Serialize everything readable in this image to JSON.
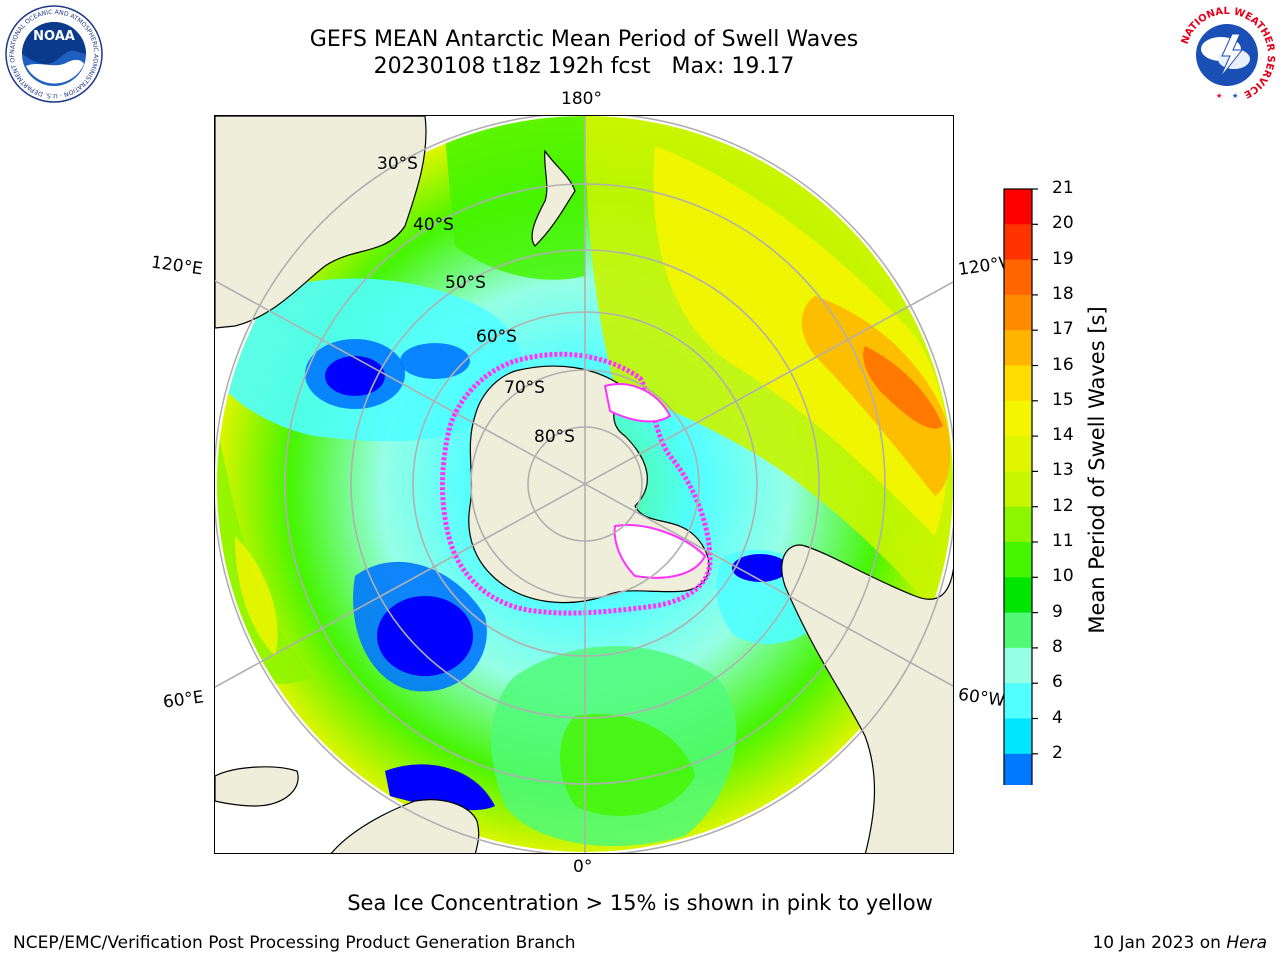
{
  "header": {
    "title_line1": "GEFS MEAN Antarctic Mean Period of Swell Waves",
    "title_line2": "20230108 t18z 192h fcst   Max: 19.17"
  },
  "logos": {
    "noaa_text": "NOAA",
    "noaa_ring_text": "NATIONAL OCEANIC AND ATMOSPHERIC ADMINISTRATION · U.S. DEPARTMENT OF COMMERCE",
    "nws_ring_text": "NATIONAL WEATHER SERVICE"
  },
  "map": {
    "projection": "south-polar-stereographic",
    "longitude_labels": {
      "top": "180°",
      "bottom": "0°",
      "upper_left": "120°E",
      "upper_right": "120°W",
      "lower_left": "60°E",
      "lower_right": "60°W"
    },
    "latitude_labels": [
      "30°S",
      "40°S",
      "50°S",
      "60°S",
      "70°S",
      "80°S"
    ],
    "colors": {
      "land": "#efeedb",
      "grid": "#b0b0b0",
      "ice_edge": "#ff33ff"
    }
  },
  "colorbar": {
    "label": "Mean Period of Swell Waves [s]",
    "ticks": [
      "21",
      "20",
      "19",
      "18",
      "17",
      "16",
      "15",
      "14",
      "13",
      "12",
      "11",
      "10",
      "9",
      "8",
      "6",
      "4",
      "2"
    ],
    "colors": [
      "#ff0000",
      "#ff3300",
      "#ff6600",
      "#ff8c00",
      "#ffb400",
      "#ffdd00",
      "#f5f500",
      "#e1f500",
      "#c8f500",
      "#8cf500",
      "#46f500",
      "#00e600",
      "#50fa78",
      "#96ffe6",
      "#50ffff",
      "#00e6ff",
      "#0078ff",
      "#0000ff"
    ],
    "under_color": "#0000ee"
  },
  "footer": {
    "note": "Sea Ice Concentration > 15% is shown in pink to yellow",
    "left": "NCEP/EMC/Verification Post Processing Product Generation Branch",
    "right_prefix": "10 Jan 2023 on ",
    "right_host": "Hera"
  }
}
